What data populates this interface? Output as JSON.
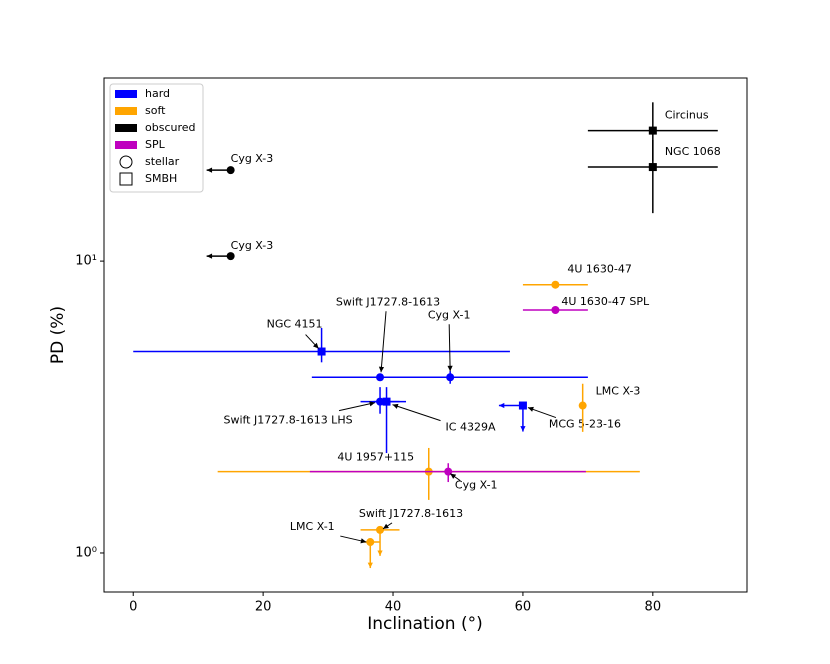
{
  "chart_data": {
    "type": "scatter",
    "xlabel": "Inclination (°)",
    "ylabel": "PD (%)",
    "xlim": [
      -4.5,
      94.5
    ],
    "ylim": [
      0.735,
      42.4
    ],
    "ylog": true,
    "xticks": [
      0,
      20,
      40,
      60,
      80
    ],
    "yticks": [
      {
        "value": 1,
        "label": "10⁰"
      },
      {
        "value": 10,
        "label": "10¹"
      }
    ],
    "legend": "upper left",
    "states": [
      {
        "name": "hard",
        "color": "#0000ff"
      },
      {
        "name": "soft",
        "color": "#ffa500"
      },
      {
        "name": "obscured",
        "color": "#000000"
      },
      {
        "name": "SPL",
        "color": "#bf00bf"
      }
    ],
    "classes": [
      {
        "name": "stellar",
        "marker": "circle"
      },
      {
        "name": "SMBH",
        "marker": "square"
      }
    ],
    "points": [
      {
        "label": "Circinus",
        "state": "obscured",
        "class": "SMBH",
        "x": 80,
        "y": 28,
        "xerr": [
          70,
          90
        ],
        "yerr": [
          22,
          35
        ]
      },
      {
        "label": "NGC 1068",
        "state": "obscured",
        "class": "SMBH",
        "x": 80,
        "y": 21,
        "xerr": [
          70,
          90
        ],
        "yerr": [
          14.6,
          26
        ]
      },
      {
        "label": "Cyg X-3",
        "state": "obscured",
        "class": "stellar",
        "x": 15,
        "y": 20.5,
        "xlimit": "upper"
      },
      {
        "label": "Cyg X-3",
        "state": "obscured",
        "class": "stellar",
        "x": 15,
        "y": 10.4,
        "xlimit": "upper"
      },
      {
        "label": "4U 1630-47",
        "state": "soft",
        "class": "stellar",
        "x": 65,
        "y": 8.3,
        "xerr": [
          60,
          70
        ]
      },
      {
        "label": "4U 1630-47 SPL",
        "state": "SPL",
        "class": "stellar",
        "x": 65,
        "y": 6.8,
        "xerr": [
          60,
          70
        ]
      },
      {
        "label": "NGC 4151",
        "state": "hard",
        "class": "SMBH",
        "x": 29,
        "y": 4.9,
        "xerr": [
          0,
          58
        ],
        "yerr": [
          4.5,
          5.9
        ]
      },
      {
        "label": "Swift J1727.8-1613",
        "state": "hard",
        "class": "stellar",
        "x": 38,
        "y": 4.0,
        "xerr": [
          35,
          41
        ]
      },
      {
        "label": "Cyg X-1",
        "state": "hard",
        "class": "stellar",
        "x": 48.8,
        "y": 4.0,
        "xerr": [
          27.5,
          70
        ],
        "yerr": [
          3.8,
          4.2
        ]
      },
      {
        "label": "Swift J1727.8-1613 LHS",
        "state": "hard",
        "class": "stellar",
        "x": 38,
        "y": 3.3,
        "xerr": [
          35,
          42
        ],
        "yerr": [
          3.0,
          3.7
        ]
      },
      {
        "label": "IC 4329A",
        "state": "hard",
        "class": "SMBH",
        "x": 39,
        "y": 3.3,
        "xerr": [
          37,
          41
        ],
        "yerr": [
          2.2,
          3.7
        ]
      },
      {
        "label": "MCG 5-23-16",
        "state": "hard",
        "class": "SMBH",
        "x": 60,
        "y": 3.2,
        "xlimit": "upper",
        "ylimit": "upper"
      },
      {
        "label": "LMC X-3",
        "state": "soft",
        "class": "stellar",
        "x": 69.2,
        "y": 3.2,
        "yerr": [
          2.6,
          3.8
        ]
      },
      {
        "label": "4U 1957+115",
        "state": "soft",
        "class": "stellar",
        "x": 45.5,
        "y": 1.9,
        "xerr": [
          13,
          78
        ],
        "yerr": [
          1.52,
          2.29
        ]
      },
      {
        "label": "Cyg X-1",
        "state": "SPL",
        "class": "stellar",
        "x": 48.5,
        "y": 1.9,
        "xerr": [
          27.2,
          69.7
        ],
        "yerr": [
          1.75,
          2.03
        ]
      },
      {
        "label": "Swift J1727.8-1613",
        "state": "soft",
        "class": "stellar",
        "x": 38,
        "y": 1.2,
        "xerr": [
          35,
          41
        ],
        "ylimit": "upper"
      },
      {
        "label": "LMC X-1",
        "state": "soft",
        "class": "stellar",
        "x": 36.5,
        "y": 1.09,
        "xerr": [
          35.5,
          38
        ],
        "ylimit": "upper"
      }
    ]
  }
}
